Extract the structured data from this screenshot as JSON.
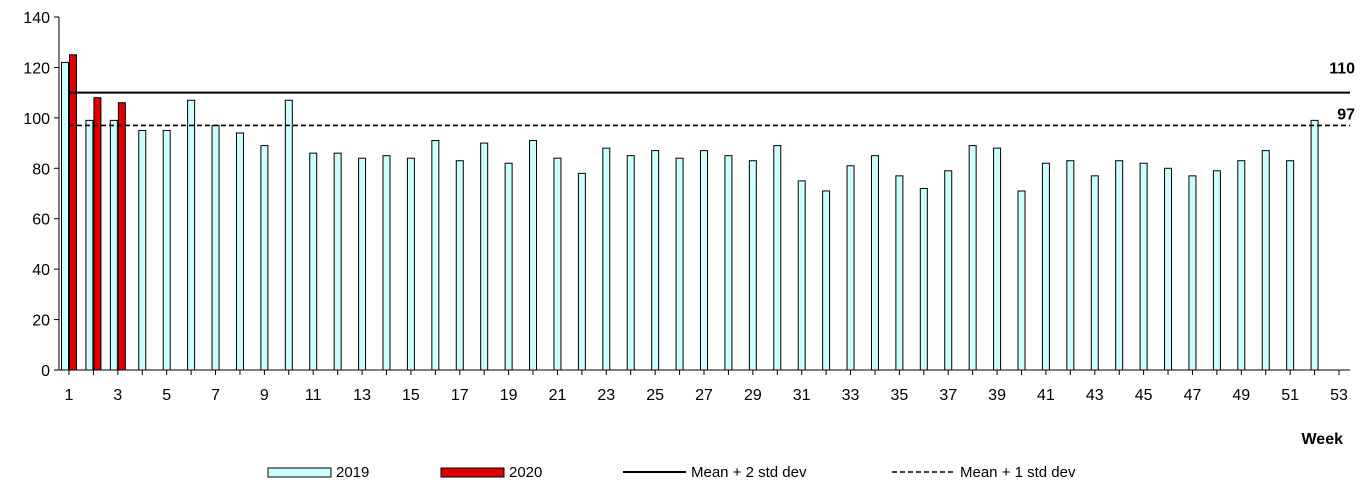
{
  "chart_data": {
    "type": "bar",
    "xlabel": "Week",
    "ylabel": "",
    "ylim": [
      0,
      140
    ],
    "xlim": [
      1,
      53
    ],
    "yticks": [
      0,
      20,
      40,
      60,
      80,
      100,
      120,
      140
    ],
    "xticks": [
      1,
      3,
      5,
      7,
      9,
      11,
      13,
      15,
      17,
      19,
      21,
      23,
      25,
      27,
      29,
      31,
      33,
      35,
      37,
      39,
      41,
      43,
      45,
      47,
      49,
      51,
      53
    ],
    "series": [
      {
        "name": "2019",
        "color": "#ccffff",
        "weeks": [
          1,
          2,
          3,
          4,
          5,
          6,
          7,
          8,
          9,
          10,
          11,
          12,
          13,
          14,
          15,
          16,
          17,
          18,
          19,
          20,
          21,
          22,
          23,
          24,
          25,
          26,
          27,
          28,
          29,
          30,
          31,
          32,
          33,
          34,
          35,
          36,
          37,
          38,
          39,
          40,
          41,
          42,
          43,
          44,
          45,
          46,
          47,
          48,
          49,
          50,
          51,
          52
        ],
        "values": [
          122,
          99,
          99,
          95,
          95,
          107,
          97,
          94,
          89,
          107,
          86,
          86,
          84,
          85,
          84,
          91,
          83,
          90,
          82,
          91,
          84,
          78,
          88,
          85,
          87,
          84,
          87,
          85,
          83,
          89,
          75,
          71,
          81,
          85,
          77,
          72,
          79,
          89,
          88,
          71,
          82,
          83,
          77,
          83,
          82,
          80,
          77,
          79,
          83,
          87,
          83,
          99
        ]
      },
      {
        "name": "2020",
        "color": "#e00000",
        "weeks": [
          1,
          2,
          3
        ],
        "values": [
          125,
          108,
          106
        ]
      }
    ],
    "reference_lines": [
      {
        "name": "Mean + 2 std dev",
        "value": 110,
        "label": "110",
        "style": "solid"
      },
      {
        "name": "Mean + 1 std dev",
        "value": 97,
        "label": "97",
        "style": "dashed"
      }
    ],
    "legend_position": "bottom",
    "grid": false
  }
}
